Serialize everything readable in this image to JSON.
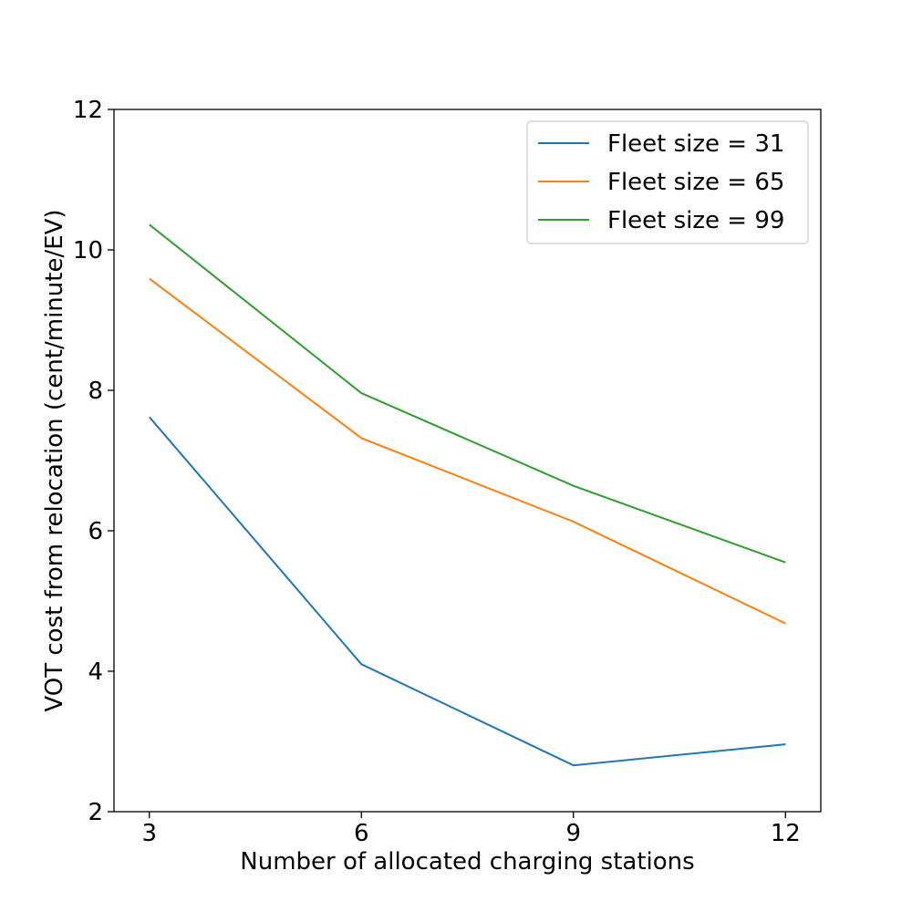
{
  "chart_data": {
    "type": "line",
    "title": "",
    "xlabel": "Number of allocated charging stations",
    "ylabel": "VOT cost from relocation (cent/minute/EV)",
    "x": [
      3,
      6,
      9,
      12
    ],
    "x_ticks": [
      "3",
      "6",
      "9",
      "12"
    ],
    "xlim": [
      2.5,
      12.5
    ],
    "ylim": [
      2,
      12
    ],
    "y_ticks": [
      "2",
      "4",
      "6",
      "8",
      "10",
      "12"
    ],
    "grid": false,
    "legend_position": "top-right",
    "series": [
      {
        "name": "Fleet size = 31",
        "color": "#1f77b4",
        "values": [
          7.62,
          4.1,
          2.66,
          2.96
        ]
      },
      {
        "name": "Fleet size = 65",
        "color": "#ff7f0e",
        "values": [
          9.59,
          7.32,
          6.13,
          4.68
        ]
      },
      {
        "name": "Fleet size = 99",
        "color": "#2ca02c",
        "values": [
          10.36,
          7.96,
          6.64,
          5.55
        ]
      }
    ]
  }
}
